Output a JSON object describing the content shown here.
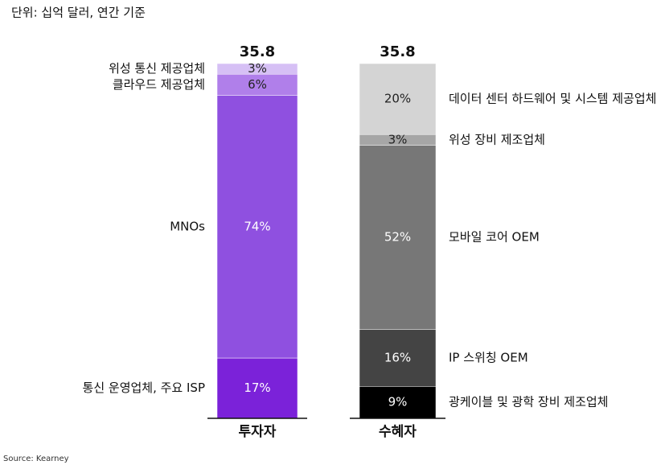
{
  "chart_data": {
    "type": "stacked_bar_100",
    "subtitle": "단위: 십억 달러, 연간 기준",
    "source": "Source: Kearney",
    "bars": [
      {
        "category": "투자자",
        "total": 35.8,
        "names": [
          "통신 운영업체, 주요 ISP",
          "MNOs",
          "클라우드 제공업체",
          "위성 통신 제공업체"
        ],
        "values": [
          17,
          74,
          6,
          3
        ],
        "value_labels": [
          "17%",
          "74%",
          "6%",
          "3%"
        ],
        "colors": [
          "#7b22d9",
          "#8f50e0",
          "#b07fea",
          "#d6c0f5"
        ]
      },
      {
        "category": "수혜자",
        "total": 35.8,
        "names": [
          "광케이블 및 광학 장비 제조업체",
          "IP 스위칭 OEM",
          "모바일 코어 OEM",
          "위성 장비 제조업체",
          "데이터 센터 하드웨어 및 시스템 제공업체"
        ],
        "values": [
          9,
          16,
          52,
          3,
          20
        ],
        "value_labels": [
          "9%",
          "16%",
          "52%",
          "3%",
          "20%"
        ],
        "colors": [
          "#000000",
          "#444444",
          "#777777",
          "#a6a6a6",
          "#d4d4d4"
        ]
      }
    ]
  }
}
